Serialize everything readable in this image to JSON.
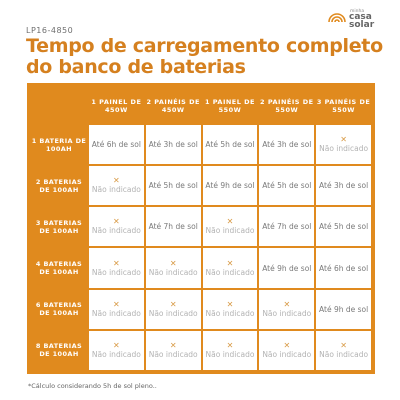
{
  "header": {
    "code": "LP16-4850",
    "title": "Tempo de carregamento completo do banco de baterias"
  },
  "logo": {
    "line1": "minha",
    "line2": "casa",
    "line3": "solar"
  },
  "table": {
    "columns": [
      "1 PAINEL DE 450W",
      "2 PAINÉIS DE 450W",
      "1 PAINEL DE 550W",
      "2 PAINÉIS DE 550W",
      "3 PAINÉIS DE 550W"
    ],
    "rows": [
      {
        "label": "1 BATERIA DE 100AH",
        "cells": [
          "Até 6h de sol",
          "Até 3h de sol",
          "Até 5h de sol",
          "Até 3h de sol",
          "x"
        ]
      },
      {
        "label": "2 BATERIAS DE 100AH",
        "cells": [
          "x",
          "Até 5h de sol",
          "Até 9h de sol",
          "Até 5h de sol",
          "Até 3h de sol"
        ]
      },
      {
        "label": "3 BATERIAS DE 100AH",
        "cells": [
          "x",
          "Até 7h de sol",
          "x",
          "Até 7h de sol",
          "Até 5h de sol"
        ]
      },
      {
        "label": "4 BATERIAS DE 100AH",
        "cells": [
          "x",
          "x",
          "x",
          "Até 9h de sol",
          "Até 6h de sol"
        ]
      },
      {
        "label": "6 BATERIAS DE 100AH",
        "cells": [
          "x",
          "x",
          "x",
          "x",
          "Até 9h de sol"
        ]
      },
      {
        "label": "8 BATERIAS DE 100AH",
        "cells": [
          "x",
          "x",
          "x",
          "x",
          "x"
        ]
      }
    ],
    "not_indicated_label": "Não indicado",
    "x_symbol": "✕"
  },
  "footnote": "*Cálculo considerando 5h de sol pleno..",
  "colors": {
    "accent": "#e08a1e",
    "title": "#d5801f",
    "x_mark": "#d89a45"
  }
}
